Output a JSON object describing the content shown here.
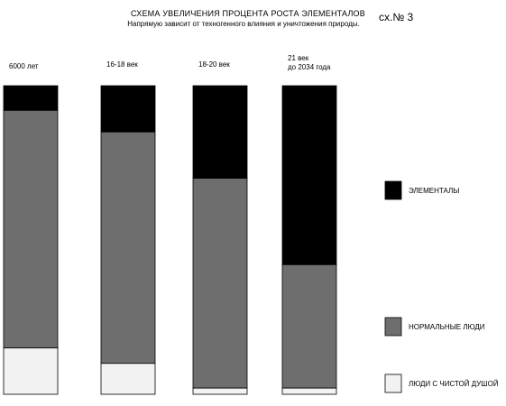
{
  "header": {
    "title": "СХЕМА УВЕЛИЧЕНИЯ ПРОЦЕНТА РОСТА ЭЛЕМЕНТАЛОВ",
    "subtitle": "Напрямую зависит от техногенного влияния и уничтожения природы.",
    "scheme_no": "сх.№ 3"
  },
  "chart_data": {
    "type": "bar",
    "stacked": true,
    "percent": true,
    "categories": [
      [
        "6000 лет"
      ],
      [
        "16-18 век"
      ],
      [
        "18-20 век"
      ],
      [
        "21 век",
        "до  2034 года"
      ]
    ],
    "series": [
      {
        "name": "ЭЛЕМЕНТАЛЫ",
        "color": "#000000",
        "values": [
          8,
          15,
          30,
          58
        ]
      },
      {
        "name": "НОРМАЛЬНЫЕ ЛЮДИ",
        "color": "#6e6e6e",
        "values": [
          77,
          75,
          68,
          40
        ]
      },
      {
        "name": "ЛЮДИ С ЧИСТОЙ ДУШОЙ",
        "color": "#f2f2f2",
        "values": [
          15,
          10,
          2,
          2
        ]
      }
    ],
    "legend_position": "right",
    "grid": false
  }
}
